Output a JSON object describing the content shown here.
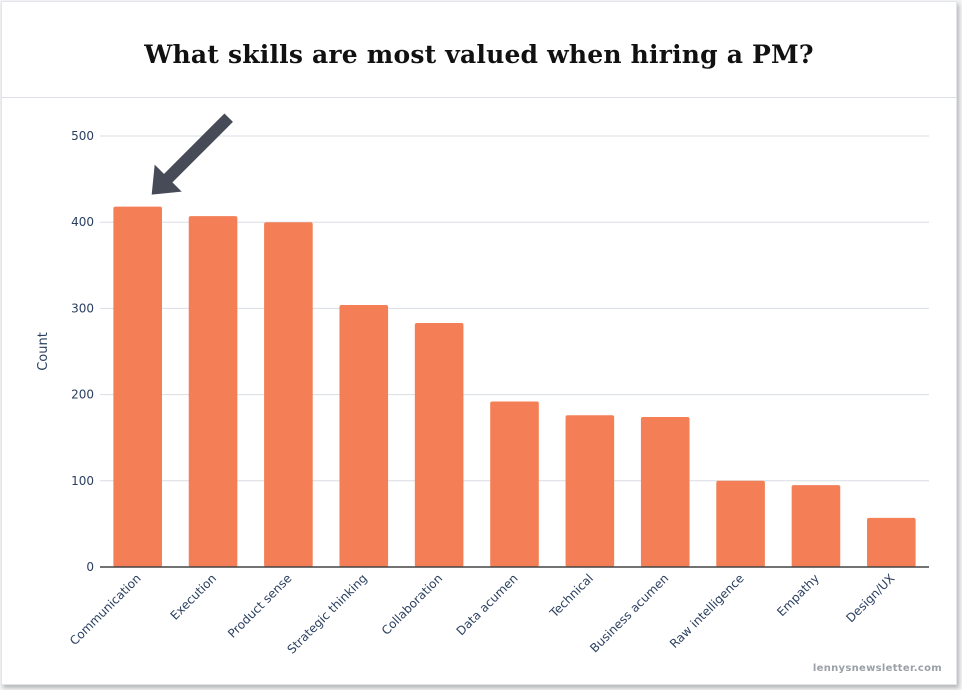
{
  "title": "What skills are most valued when hiring a PM?",
  "watermark": "lennysnewsletter.com",
  "colors": {
    "bar": "#f47f57",
    "grid": "#d9dde3",
    "axis": "#444444",
    "arrow": "#474a57",
    "text": "#2a3f5f"
  },
  "chart_data": {
    "type": "bar",
    "title": "What skills are most valued when hiring a PM?",
    "xlabel": "",
    "ylabel": "Count",
    "ylim": [
      0,
      500
    ],
    "yticks": [
      0,
      100,
      200,
      300,
      400,
      500
    ],
    "grid": true,
    "legend": "none",
    "categories": [
      "Communication",
      "Execution",
      "Product sense",
      "Strategic thinking",
      "Collaboration",
      "Data acumen",
      "Technical",
      "Business acumen",
      "Raw intelligence",
      "Empathy",
      "Design/UX"
    ],
    "values": [
      418,
      407,
      400,
      304,
      283,
      192,
      176,
      174,
      100,
      95,
      57
    ],
    "annotation": {
      "type": "arrow",
      "target_category": "Communication"
    }
  }
}
